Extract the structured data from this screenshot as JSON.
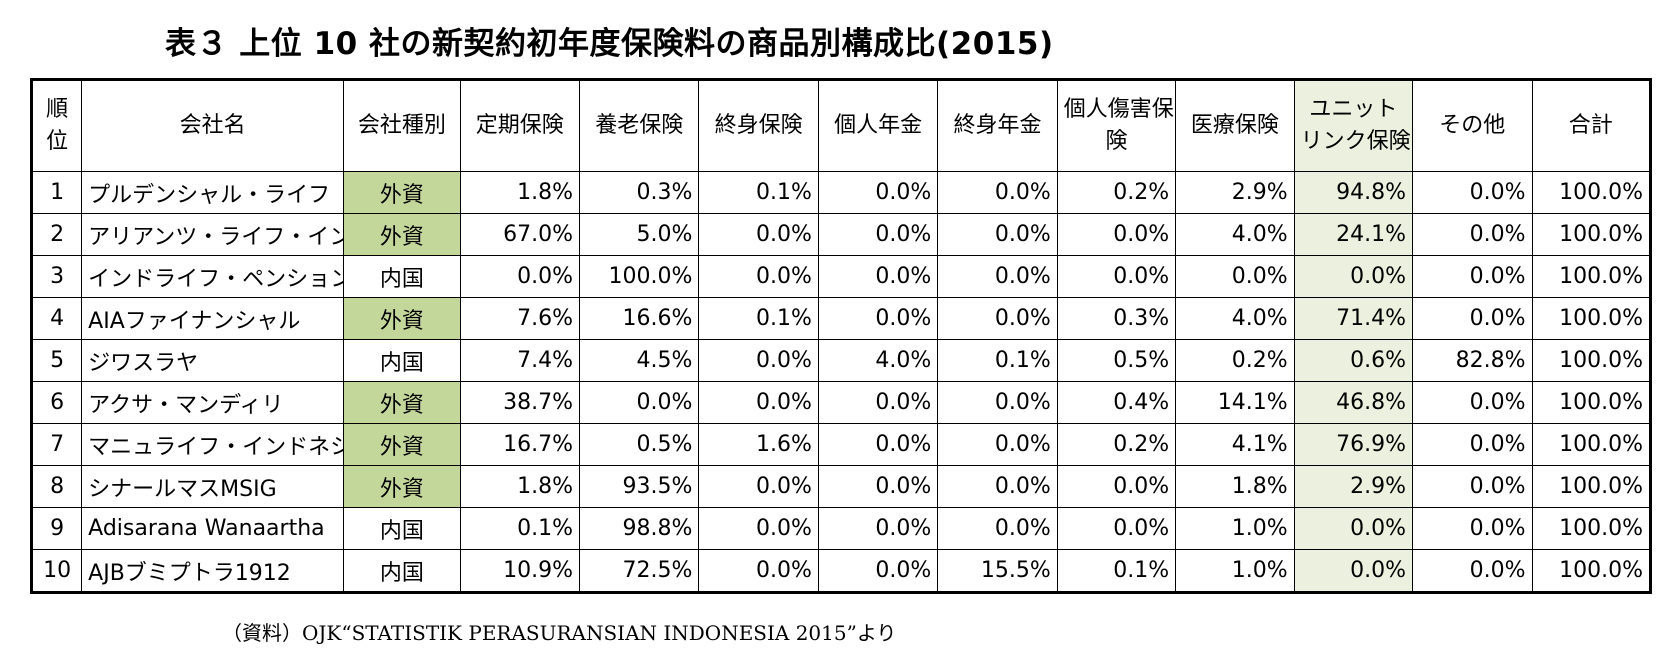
{
  "title": "表３ 上位 10 社の新契約初年度保険料の商品別構成比(2015)",
  "columns": [
    "順位",
    "会社名",
    "会社種別",
    "定期保険",
    "養老保険",
    "終身保険",
    "個人年金",
    "終身年金",
    "個人傷害保険",
    "医療保険",
    "ユニットリンク保険",
    "その他",
    "合計"
  ],
  "header": {
    "rank_1": "順",
    "rank_2": "位",
    "company": "会社名",
    "type": "会社種別",
    "term": "定期保険",
    "endowment": "養老保険",
    "whole_life": "終身保険",
    "annuity": "個人年金",
    "life_annuity": "終身年金",
    "accident_1": "個人傷害保",
    "accident_2": "険",
    "medical": "医療保険",
    "unit_link_1": "ユニット",
    "unit_link_2": "リンク保険",
    "other": "その他",
    "total": "合計"
  },
  "rows": [
    [
      "1",
      "プルデンシャル・ライフ",
      "外資",
      "1.8%",
      "0.3%",
      "0.1%",
      "0.0%",
      "0.0%",
      "0.2%",
      "2.9%",
      "94.8%",
      "0.0%",
      "100.0%"
    ],
    [
      "2",
      "アリアンツ・ライフ・インドネシア",
      "外資",
      "67.0%",
      "5.0%",
      "0.0%",
      "0.0%",
      "0.0%",
      "0.0%",
      "4.0%",
      "24.1%",
      "0.0%",
      "100.0%"
    ],
    [
      "3",
      "インドライフ・ペンションタマ",
      "内国",
      "0.0%",
      "100.0%",
      "0.0%",
      "0.0%",
      "0.0%",
      "0.0%",
      "0.0%",
      "0.0%",
      "0.0%",
      "100.0%"
    ],
    [
      "4",
      "AIAファイナンシャル",
      "外資",
      "7.6%",
      "16.6%",
      "0.1%",
      "0.0%",
      "0.0%",
      "0.3%",
      "4.0%",
      "71.4%",
      "0.0%",
      "100.0%"
    ],
    [
      "5",
      "ジワスラヤ",
      "内国",
      "7.4%",
      "4.5%",
      "0.0%",
      "4.0%",
      "0.1%",
      "0.5%",
      "0.2%",
      "0.6%",
      "82.8%",
      "100.0%"
    ],
    [
      "6",
      "アクサ・マンディリ",
      "外資",
      "38.7%",
      "0.0%",
      "0.0%",
      "0.0%",
      "0.0%",
      "0.4%",
      "14.1%",
      "46.8%",
      "0.0%",
      "100.0%"
    ],
    [
      "7",
      "マニュライフ・インドネシア",
      "外資",
      "16.7%",
      "0.5%",
      "1.6%",
      "0.0%",
      "0.0%",
      "0.2%",
      "4.1%",
      "76.9%",
      "0.0%",
      "100.0%"
    ],
    [
      "8",
      "シナールマスMSIG",
      "外資",
      "1.8%",
      "93.5%",
      "0.0%",
      "0.0%",
      "0.0%",
      "0.0%",
      "1.8%",
      "2.9%",
      "0.0%",
      "100.0%"
    ],
    [
      "9",
      "Adisarana Wanaartha",
      "内国",
      "0.1%",
      "98.8%",
      "0.0%",
      "0.0%",
      "0.0%",
      "0.0%",
      "1.0%",
      "0.0%",
      "0.0%",
      "100.0%"
    ],
    [
      "10",
      "AJBブミプトラ1912",
      "内国",
      "10.9%",
      "72.5%",
      "0.0%",
      "0.0%",
      "15.5%",
      "0.1%",
      "1.0%",
      "0.0%",
      "0.0%",
      "100.0%"
    ]
  ],
  "foreign_type_label": "外資",
  "colors": {
    "foreign_fill": "#c4d79b",
    "unit_link_fill": "#ebf1de",
    "border": "#000000"
  },
  "note": "（資料）OJK“STATISTIK PERASURANSIAN INDONESIA 2015”より"
}
